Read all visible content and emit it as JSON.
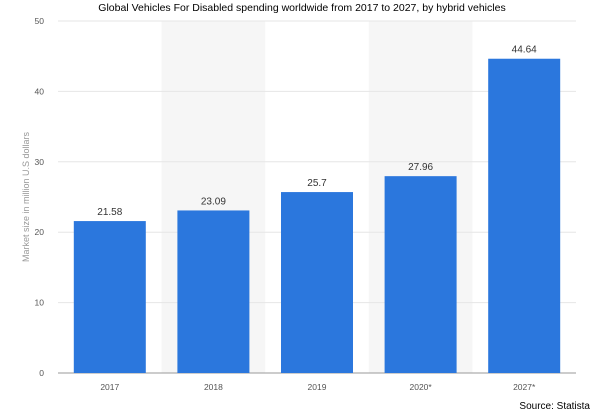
{
  "chart_data": {
    "type": "bar",
    "title": "Global Vehicles For Disabled spending worldwide from 2017 to 2027, by hybrid vehicles",
    "xlabel": "",
    "ylabel": "Market size in million U.S dollars",
    "categories": [
      "2017",
      "2018",
      "2019",
      "2020*",
      "2027*"
    ],
    "values": [
      21.58,
      23.09,
      25.7,
      27.96,
      44.64
    ],
    "value_labels": [
      "21.58",
      "23.09",
      "25.7",
      "27.96",
      "44.64"
    ],
    "ylim": [
      0,
      50
    ],
    "yticks": [
      "0",
      "10",
      "20",
      "30",
      "40",
      "50"
    ],
    "grid": true,
    "bar_color": "#2b77dd",
    "source": "Source: Statista"
  }
}
